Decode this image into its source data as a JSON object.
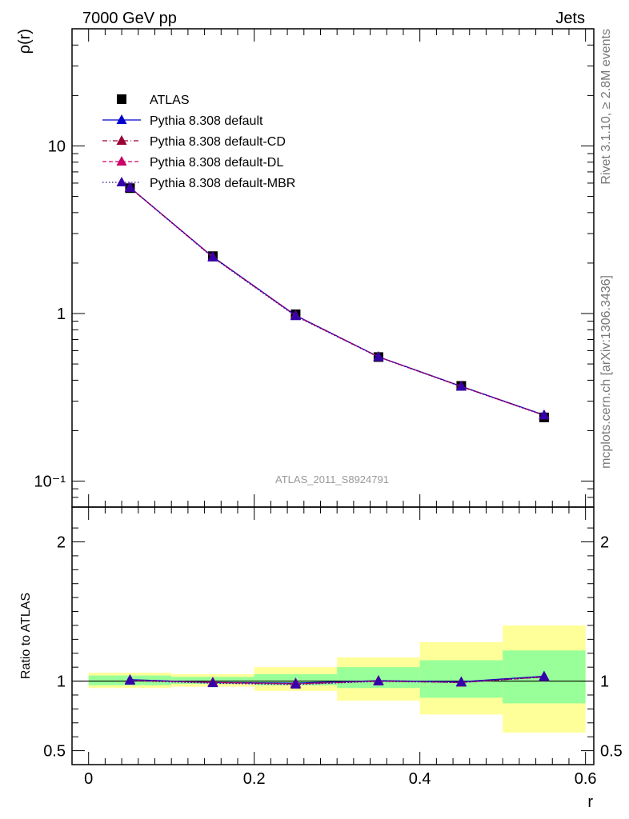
{
  "header": {
    "left": "7000 GeV pp",
    "right": "Jets"
  },
  "side_text": {
    "rivet": "Rivet 3.1.10, ≥ 2.8M events",
    "source": "mcplots.cern.ch [arXiv:1306.3436]"
  },
  "watermark": "ATLAS_2011_S8924791",
  "colors": {
    "data": "#000000",
    "default": "#0000cc",
    "default_cd": "#990033",
    "default_dl": "#cc0066",
    "default_mbr": "#3300aa",
    "band_inner": "#99ff99",
    "band_outer": "#ffff99"
  },
  "legend": [
    {
      "label": "ATLAS"
    },
    {
      "label": "Pythia 8.308 default"
    },
    {
      "label": "Pythia 8.308 default-CD"
    },
    {
      "label": "Pythia 8.308 default-DL"
    },
    {
      "label": "Pythia 8.308 default-MBR"
    }
  ],
  "chart_data": [
    {
      "type": "line",
      "ylabel": "ρ(r)",
      "yscale": "log",
      "xlim": [
        -0.02,
        0.61
      ],
      "ylim": [
        0.07,
        50
      ],
      "ytick_labels": [
        "10⁻¹",
        "1",
        "10"
      ],
      "x": [
        0.05,
        0.15,
        0.25,
        0.35,
        0.45,
        0.55
      ],
      "series": [
        {
          "name": "ATLAS",
          "values": [
            5.6,
            2.2,
            0.99,
            0.55,
            0.37,
            0.24
          ],
          "marker": "square"
        },
        {
          "name": "Pythia 8.308 default",
          "values": [
            5.65,
            2.18,
            0.975,
            0.552,
            0.368,
            0.248
          ],
          "marker": "triangle"
        },
        {
          "name": "Pythia 8.308 default-CD",
          "values": [
            5.64,
            2.17,
            0.97,
            0.551,
            0.367,
            0.247
          ],
          "marker": "triangle"
        },
        {
          "name": "Pythia 8.308 default-DL",
          "values": [
            5.64,
            2.17,
            0.97,
            0.551,
            0.367,
            0.247
          ],
          "marker": "triangle"
        },
        {
          "name": "Pythia 8.308 default-MBR",
          "values": [
            5.63,
            2.16,
            0.965,
            0.55,
            0.366,
            0.247
          ],
          "marker": "triangle"
        }
      ]
    },
    {
      "type": "line",
      "xlabel": "r",
      "ylabel": "Ratio to ATLAS",
      "xlim": [
        -0.02,
        0.61
      ],
      "ylim": [
        0.4,
        2.25
      ],
      "xtick_labels": [
        "0",
        "0.2",
        "0.4",
        "0.6"
      ],
      "ytick_labels": [
        "0.5",
        "1",
        "2"
      ],
      "bands": [
        {
          "x": [
            0.0,
            0.1
          ],
          "outer": [
            0.95,
            1.06
          ],
          "inner": [
            0.97,
            1.04
          ]
        },
        {
          "x": [
            0.1,
            0.2
          ],
          "outer": [
            0.96,
            1.05
          ],
          "inner": [
            0.98,
            1.03
          ]
        },
        {
          "x": [
            0.2,
            0.3
          ],
          "outer": [
            0.93,
            1.1
          ],
          "inner": [
            0.97,
            1.05
          ]
        },
        {
          "x": [
            0.3,
            0.4
          ],
          "outer": [
            0.86,
            1.17
          ],
          "inner": [
            0.95,
            1.1
          ]
        },
        {
          "x": [
            0.4,
            0.5
          ],
          "outer": [
            0.76,
            1.28
          ],
          "inner": [
            0.88,
            1.15
          ]
        },
        {
          "x": [
            0.5,
            0.6
          ],
          "outer": [
            0.63,
            1.4
          ],
          "inner": [
            0.84,
            1.22
          ]
        }
      ],
      "x": [
        0.05,
        0.15,
        0.25,
        0.35,
        0.45,
        0.55
      ],
      "series": [
        {
          "name": "Pythia 8.308 default",
          "values": [
            1.01,
            0.99,
            0.985,
            1.003,
            0.995,
            1.035
          ]
        },
        {
          "name": "Pythia 8.308 default-CD",
          "values": [
            1.005,
            0.99,
            0.98,
            1.0,
            0.99,
            1.03
          ]
        },
        {
          "name": "Pythia 8.308 default-DL",
          "values": [
            1.005,
            0.99,
            0.98,
            1.0,
            0.99,
            1.03
          ]
        },
        {
          "name": "Pythia 8.308 default-MBR",
          "values": [
            1.003,
            0.985,
            0.975,
            0.998,
            0.99,
            1.03
          ]
        }
      ]
    }
  ]
}
